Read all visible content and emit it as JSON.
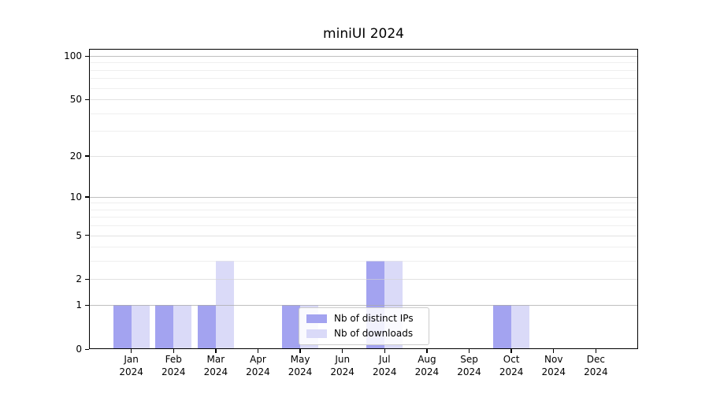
{
  "chart_data": {
    "type": "bar",
    "title": "miniUI 2024",
    "categories": [
      "Jan",
      "Feb",
      "Mar",
      "Apr",
      "May",
      "Jun",
      "Jul",
      "Aug",
      "Sep",
      "Oct",
      "Nov",
      "Dec"
    ],
    "x_tick_year": "2024",
    "series": [
      {
        "name": "Nb of distinct IPs",
        "color": "#a3a3f0",
        "values": [
          1,
          1,
          1,
          0,
          1,
          0,
          3,
          0,
          0,
          1,
          0,
          0
        ]
      },
      {
        "name": "Nb of downloads",
        "color": "#dadaf8",
        "values": [
          1,
          1,
          3,
          0,
          1,
          0,
          3,
          0,
          0,
          1,
          0,
          0
        ]
      }
    ],
    "scale": "log1p",
    "ylim": [
      0,
      112
    ],
    "y_tick_labels": [
      0,
      1,
      2,
      5,
      10,
      20,
      50,
      100
    ],
    "gridlines": {
      "decade": [
        1,
        10,
        100
      ],
      "labeled": [
        2,
        5,
        20,
        50
      ],
      "minor": [
        3,
        4,
        6,
        7,
        8,
        9,
        30,
        40,
        60,
        70,
        80,
        90
      ]
    },
    "grid": true,
    "legend_position": "lower center"
  },
  "colors": {
    "grid_decade": "rgba(170,170,170,0.75)",
    "grid_labeled": "rgba(210,210,210,0.65)",
    "grid_minor": "rgba(228,228,228,0.6)",
    "axis": "#000000",
    "legend_border": "#cccccc"
  }
}
